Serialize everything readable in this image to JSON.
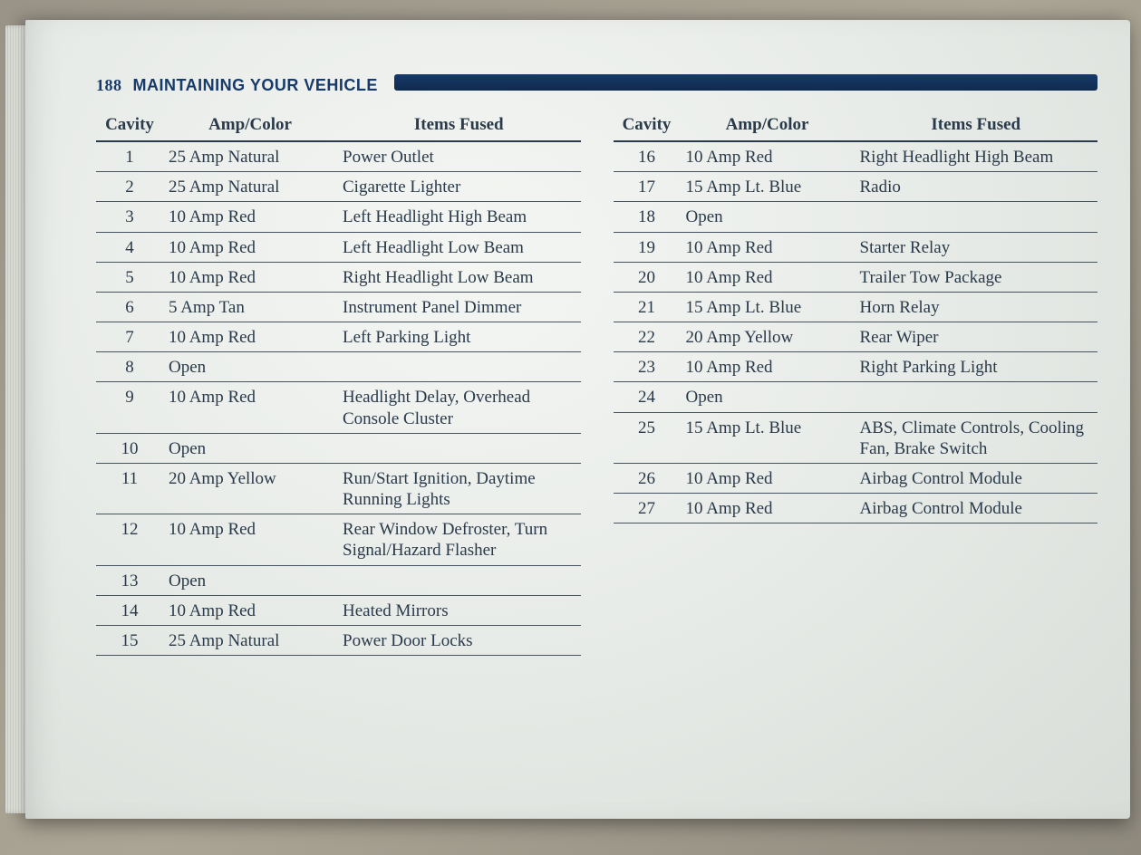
{
  "page_number": "188",
  "section_title": "MAINTAINING YOUR VEHICLE",
  "colors": {
    "header_text": "#173a6a",
    "band": "#173a6a",
    "rule": "#47535e",
    "text": "#2a3a4a",
    "paper_bg": "#eef1ee",
    "ambient_bg": "#9a9488"
  },
  "typography": {
    "body_font": "Book Antiqua / Palatino serif",
    "header_font": "Arial (bold, small caps look)",
    "body_size_pt": 14,
    "header_size_pt": 14
  },
  "table": {
    "columns": [
      "Cavity",
      "Amp/Color",
      "Items Fused"
    ],
    "col_widths_pct": [
      12,
      34,
      54
    ],
    "left_rows": [
      {
        "cavity": "1",
        "amp": "25 Amp Natural",
        "items": "Power Outlet"
      },
      {
        "cavity": "2",
        "amp": "25 Amp Natural",
        "items": "Cigarette Lighter"
      },
      {
        "cavity": "3",
        "amp": "10 Amp Red",
        "items": "Left Headlight High Beam"
      },
      {
        "cavity": "4",
        "amp": "10 Amp Red",
        "items": "Left Headlight Low Beam"
      },
      {
        "cavity": "5",
        "amp": "10 Amp Red",
        "items": "Right Headlight Low Beam"
      },
      {
        "cavity": "6",
        "amp": "5 Amp Tan",
        "items": "Instrument Panel Dimmer"
      },
      {
        "cavity": "7",
        "amp": "10 Amp Red",
        "items": "Left Parking Light"
      },
      {
        "cavity": "8",
        "amp": "Open",
        "items": ""
      },
      {
        "cavity": "9",
        "amp": "10 Amp Red",
        "items": "Headlight Delay, Overhead Console Cluster"
      },
      {
        "cavity": "10",
        "amp": "Open",
        "items": ""
      },
      {
        "cavity": "11",
        "amp": "20 Amp Yellow",
        "items": "Run/Start Ignition, Daytime Running Lights"
      },
      {
        "cavity": "12",
        "amp": "10 Amp Red",
        "items": "Rear Window Defroster, Turn Signal/Hazard Flasher"
      },
      {
        "cavity": "13",
        "amp": "Open",
        "items": ""
      },
      {
        "cavity": "14",
        "amp": "10 Amp Red",
        "items": "Heated Mirrors"
      },
      {
        "cavity": "15",
        "amp": "25 Amp Natural",
        "items": "Power Door Locks"
      }
    ],
    "right_rows": [
      {
        "cavity": "16",
        "amp": "10 Amp Red",
        "items": "Right Headlight High Beam"
      },
      {
        "cavity": "17",
        "amp": "15 Amp Lt. Blue",
        "items": "Radio"
      },
      {
        "cavity": "18",
        "amp": "Open",
        "items": ""
      },
      {
        "cavity": "19",
        "amp": "10 Amp Red",
        "items": "Starter Relay"
      },
      {
        "cavity": "20",
        "amp": "10 Amp Red",
        "items": "Trailer Tow Package"
      },
      {
        "cavity": "21",
        "amp": "15 Amp Lt. Blue",
        "items": "Horn Relay"
      },
      {
        "cavity": "22",
        "amp": "20 Amp Yellow",
        "items": "Rear Wiper"
      },
      {
        "cavity": "23",
        "amp": "10 Amp Red",
        "items": "Right Parking Light"
      },
      {
        "cavity": "24",
        "amp": "Open",
        "items": ""
      },
      {
        "cavity": "25",
        "amp": "15 Amp Lt. Blue",
        "items": "ABS, Climate Controls, Cooling Fan, Brake Switch"
      },
      {
        "cavity": "26",
        "amp": "10 Amp Red",
        "items": "Airbag Control Module"
      },
      {
        "cavity": "27",
        "amp": "10 Amp Red",
        "items": "Airbag Control Module"
      }
    ]
  }
}
